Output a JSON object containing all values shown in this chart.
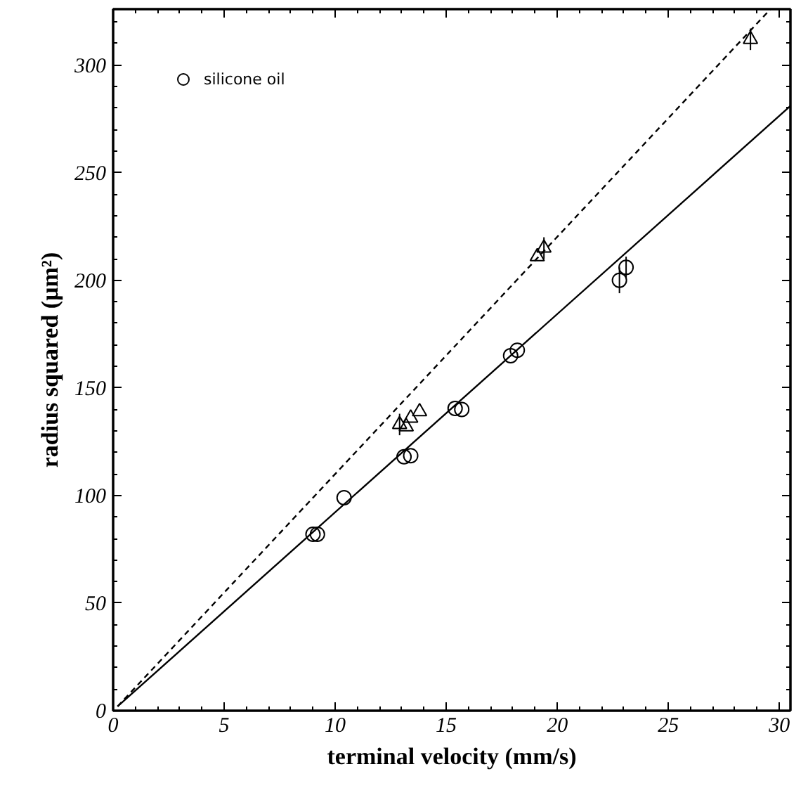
{
  "chart_data": {
    "type": "scatter",
    "xlabel": "terminal velocity (mm/s)",
    "ylabel": "radius squared (μm²)",
    "xlim": [
      0,
      30.5
    ],
    "ylim": [
      0,
      326
    ],
    "xticks": [
      0,
      5,
      10,
      15,
      20,
      25,
      30
    ],
    "yticks": [
      0,
      50,
      100,
      150,
      200,
      250,
      300
    ],
    "grid": false,
    "legend": "top left",
    "series": [
      {
        "name": "silicone oil",
        "color": "#000000",
        "marker": "circle",
        "x": [
          9.0,
          9.2,
          10.4,
          13.1,
          13.4,
          15.4,
          15.7,
          17.9,
          18.2,
          22.8,
          23.1
        ],
        "values": [
          82,
          82,
          99,
          118,
          118.5,
          140.5,
          140,
          165,
          167.5,
          200,
          206
        ],
        "errors": [
          null,
          null,
          null,
          null,
          null,
          null,
          null,
          null,
          null,
          6,
          5
        ]
      },
      {
        "color": "#000000",
        "marker": "triangle",
        "x": [
          12.9,
          13.2,
          13.4,
          13.8,
          19.1,
          19.4,
          28.7
        ],
        "values": [
          133,
          132,
          136,
          139,
          211,
          215,
          312
        ],
        "errors": [
          5,
          null,
          null,
          null,
          null,
          5,
          5
        ]
      },
      {
        "type": "line",
        "color": "#000000",
        "marker": "none",
        "line_style": "solid",
        "x": [
          0.2,
          30.5
        ],
        "values": [
          2,
          281
        ]
      },
      {
        "type": "line",
        "color": "#000000",
        "marker": "none",
        "line_style": "dashed",
        "x": [
          0.2,
          29.6
        ],
        "values": [
          2,
          326
        ]
      }
    ]
  }
}
